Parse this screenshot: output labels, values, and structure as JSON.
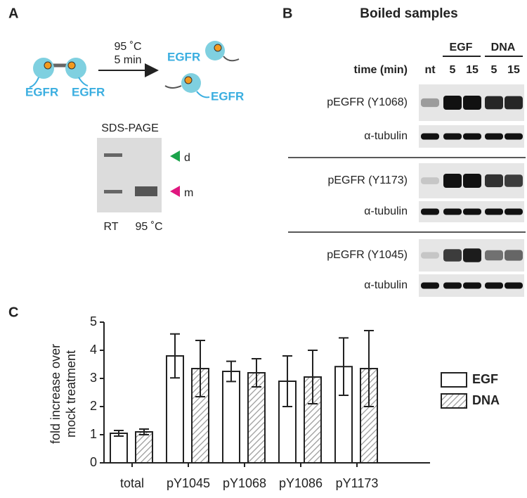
{
  "panel_a": {
    "label": "A",
    "condition": [
      "95 ˚C",
      "5 min"
    ],
    "proteins": [
      "EGFR",
      "EGFR",
      "EGFR",
      "EGFR"
    ],
    "gel": {
      "title": "SDS-PAGE",
      "markers": [
        "d",
        "m"
      ],
      "lanes": [
        "RT",
        "95 ˚C"
      ]
    }
  },
  "panel_b": {
    "label": "B",
    "title": "Boiled samples",
    "groups": [
      "EGF",
      "DNA"
    ],
    "time_label": "time (min)",
    "lanes": [
      "nt",
      "5",
      "15",
      "5",
      "15"
    ],
    "rows": [
      "pEGFR (Y1068)",
      "α-tubulin",
      "pEGFR (Y1173)",
      "α-tubulin",
      "pEGFR (Y1045)",
      "α-tubulin"
    ]
  },
  "chart_data": {
    "type": "bar",
    "label": "C",
    "ylabel": [
      "fold increase over",
      "mock treatment"
    ],
    "categories": [
      "total",
      "pY1045",
      "pY1068",
      "pY1086",
      "pY1173"
    ],
    "series": [
      {
        "name": "EGF",
        "color": "#ffffff",
        "hatch": false,
        "values": [
          1.05,
          3.8,
          3.25,
          2.9,
          3.42
        ],
        "errors": [
          0.1,
          0.78,
          0.36,
          0.9,
          1.02
        ]
      },
      {
        "name": "DNA",
        "color": "#999999",
        "hatch": true,
        "values": [
          1.1,
          3.35,
          3.2,
          3.05,
          3.35
        ],
        "errors": [
          0.1,
          1.0,
          0.5,
          0.95,
          1.35
        ]
      }
    ],
    "ylim": [
      0,
      5
    ],
    "yticks": [
      0,
      1,
      2,
      3,
      4,
      5
    ]
  }
}
